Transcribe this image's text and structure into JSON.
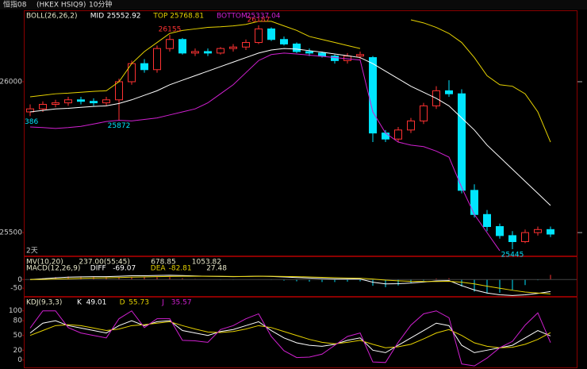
{
  "header": {
    "symbol": "恒指08",
    "code": "(HKEX HSIQ9)",
    "period": "10分钟"
  },
  "chart_data": [
    {
      "type": "candlestick",
      "title": "BOLL(26,26,2)",
      "x_label": "2天",
      "ylim": [
        25424,
        26234
      ],
      "yticks": [
        26000,
        25500
      ],
      "up_color": "#ff3232",
      "down_color": "#00e5ff",
      "open": [
        25900,
        25910,
        25925,
        25930,
        25940,
        25935,
        25930,
        25940,
        26000,
        26060,
        26040,
        26110,
        26140,
        26095,
        26100,
        26095,
        26110,
        26115,
        26130,
        26175,
        26140,
        26125,
        26100,
        26095,
        26085,
        26070,
        26085,
        26080,
        25830,
        25810,
        25840,
        25870,
        25920,
        25970,
        25960,
        25640,
        25560,
        25520,
        25490,
        25470,
        25500,
        25510
      ],
      "high": [
        25925,
        25935,
        25940,
        25950,
        25950,
        25945,
        25950,
        26010,
        26070,
        26075,
        26120,
        26155,
        26145,
        26110,
        26110,
        26115,
        26125,
        26140,
        26187,
        26180,
        26150,
        26130,
        26110,
        26100,
        26090,
        26095,
        26100,
        26085,
        25840,
        25850,
        25880,
        25930,
        25985,
        26005,
        25975,
        25660,
        25575,
        25530,
        25505,
        25510,
        25520,
        25520
      ],
      "low": [
        25886,
        25900,
        25915,
        25920,
        25925,
        25920,
        25920,
        25872,
        25990,
        26030,
        26030,
        26100,
        26090,
        26085,
        26085,
        26090,
        26100,
        26105,
        26125,
        26135,
        26120,
        26095,
        26085,
        26080,
        26060,
        26060,
        26075,
        25800,
        25800,
        25800,
        25830,
        25860,
        25910,
        25950,
        25630,
        25550,
        25505,
        25480,
        25445,
        25465,
        25490,
        25485
      ],
      "close": [
        25910,
        25925,
        25930,
        25940,
        25935,
        25930,
        25940,
        26000,
        26060,
        26040,
        26110,
        26140,
        26095,
        26100,
        26095,
        26110,
        26115,
        26130,
        26175,
        26140,
        26125,
        26100,
        26095,
        26085,
        26070,
        26085,
        26090,
        25830,
        25810,
        25840,
        25870,
        25920,
        25970,
        25960,
        25640,
        25560,
        25520,
        25490,
        25470,
        25500,
        25510,
        25495
      ],
      "series": [
        {
          "name": "MID",
          "current": 25552.92,
          "color": "#ffffff",
          "values": [
            25900,
            25905,
            25910,
            25912,
            25915,
            25918,
            25920,
            25928,
            25940,
            25955,
            25970,
            25990,
            26005,
            26020,
            26035,
            26050,
            26065,
            26080,
            26095,
            26105,
            26110,
            26108,
            26103,
            26098,
            26092,
            26086,
            26080,
            26060,
            26035,
            26010,
            25985,
            25965,
            25945,
            25920,
            25880,
            25840,
            25790,
            25750,
            25710,
            25670,
            25630,
            25590
          ]
        },
        {
          "name": "TOP",
          "current": 25768.81,
          "color": "#e6d200",
          "values": [
            25950,
            25955,
            25960,
            25962,
            25965,
            25968,
            25970,
            26000,
            26060,
            26100,
            26130,
            26160,
            26170,
            26175,
            26180,
            26182,
            26185,
            26190,
            26200,
            26200,
            26185,
            26170,
            26150,
            26140,
            26130,
            26120,
            26110,
            null,
            null,
            null,
            26205,
            26195,
            26180,
            26160,
            26130,
            26080,
            26020,
            25990,
            25985,
            25960,
            25900,
            25800
          ]
        },
        {
          "name": "BOTTOM",
          "current": 25337.04,
          "color": "#d020d0",
          "values": [
            25850,
            25848,
            25845,
            25848,
            25852,
            25860,
            25868,
            25872,
            25870,
            25875,
            25880,
            25890,
            25900,
            25910,
            25930,
            25960,
            25990,
            26030,
            26070,
            26090,
            26095,
            26092,
            26088,
            26084,
            26080,
            26076,
            26072,
            25900,
            25830,
            25800,
            25790,
            25785,
            25770,
            25750,
            25650,
            25560,
            25500,
            25440,
            null,
            null,
            null,
            null
          ]
        }
      ],
      "annotations": [
        {
          "text": "26155",
          "index": 11,
          "at": "high",
          "color": "#ff3232"
        },
        {
          "text": "26187",
          "index": 18,
          "at": "high",
          "color": "#ff3232"
        },
        {
          "text": "25872",
          "index": 7,
          "at": "low",
          "color": "#00e5ff"
        },
        {
          "text": "25445",
          "index": 38,
          "at": "low",
          "color": "#00e5ff"
        },
        {
          "text": "386",
          "index": 0,
          "at": "low",
          "color": "#00e5ff"
        }
      ]
    },
    {
      "type": "macd",
      "title": "MACD(12,26,9)",
      "mv": {
        "name": "MV(10,20)",
        "items": [
          "237.00(55:45)",
          "678.85",
          "1053.82"
        ]
      },
      "ylim": [
        -95,
        130
      ],
      "yticks": [
        0,
        -50
      ],
      "up_color": "#ff3232",
      "down_color": "#00e5ff",
      "histogram": {
        "current": 27.48,
        "values": [
          0,
          8,
          14,
          18,
          18,
          16,
          14,
          14,
          16,
          14,
          14,
          14,
          8,
          4,
          0,
          -2,
          -2,
          0,
          2,
          -2,
          -6,
          -10,
          -12,
          -14,
          -14,
          -12,
          -10,
          -36,
          -44,
          -34,
          -20,
          -6,
          6,
          8,
          -40,
          -70,
          -80,
          -76,
          -60,
          -32,
          -4,
          27.48
        ]
      },
      "series": [
        {
          "name": "DIFF",
          "current": -69.07,
          "color": "#ffffff",
          "values": [
            0,
            5,
            10,
            14,
            16,
            17,
            17,
            19,
            22,
            22,
            24,
            25,
            23,
            21,
            19,
            18,
            17,
            18,
            20,
            18,
            15,
            12,
            9,
            6,
            4,
            3,
            3,
            -15,
            -25,
            -24,
            -20,
            -14,
            -8,
            -6,
            -35,
            -60,
            -78,
            -88,
            -92,
            -88,
            -80,
            -69.07
          ]
        },
        {
          "name": "DEA",
          "current": -82.81,
          "color": "#e6d200",
          "values": [
            0,
            1,
            3,
            5,
            7,
            9,
            10,
            12,
            14,
            15,
            17,
            18,
            19,
            19,
            19,
            19,
            18,
            18,
            19,
            19,
            18,
            17,
            15,
            13,
            11,
            9,
            8,
            3,
            -3,
            -7,
            -10,
            -11,
            -11,
            -10,
            -15,
            -25,
            -38,
            -50,
            -62,
            -72,
            -78,
            -82.81
          ]
        }
      ]
    },
    {
      "type": "line",
      "title": "KDJ(9,3,3)",
      "ylim": [
        -15,
        127
      ],
      "yticks": [
        100,
        80,
        50,
        20,
        0
      ],
      "series": [
        {
          "name": "K",
          "current": 49.01,
          "color": "#ffffff",
          "values": [
            55,
            75,
            80,
            70,
            65,
            60,
            55,
            70,
            80,
            70,
            78,
            80,
            60,
            55,
            50,
            58,
            62,
            70,
            78,
            60,
            45,
            35,
            30,
            28,
            32,
            40,
            45,
            20,
            15,
            30,
            45,
            60,
            75,
            70,
            30,
            15,
            20,
            25,
            30,
            45,
            60,
            49.01
          ]
        },
        {
          "name": "D",
          "current": 55.73,
          "color": "#e6d200",
          "values": [
            50,
            60,
            70,
            72,
            70,
            65,
            60,
            63,
            70,
            72,
            75,
            78,
            70,
            63,
            57,
            56,
            58,
            63,
            70,
            66,
            58,
            50,
            42,
            36,
            33,
            36,
            40,
            32,
            25,
            27,
            32,
            43,
            55,
            62,
            50,
            35,
            28,
            25,
            26,
            32,
            42,
            55.73
          ]
        },
        {
          "name": "J",
          "current": 35.57,
          "color": "#d020d0",
          "values": [
            65,
            100,
            100,
            66,
            55,
            50,
            45,
            84,
            100,
            66,
            84,
            84,
            40,
            39,
            36,
            62,
            70,
            84,
            94,
            48,
            19,
            5,
            6,
            12,
            30,
            48,
            55,
            -4,
            -5,
            36,
            71,
            94,
            100,
            86,
            -8,
            -12,
            4,
            25,
            38,
            71,
            96,
            35.57
          ]
        }
      ]
    }
  ]
}
